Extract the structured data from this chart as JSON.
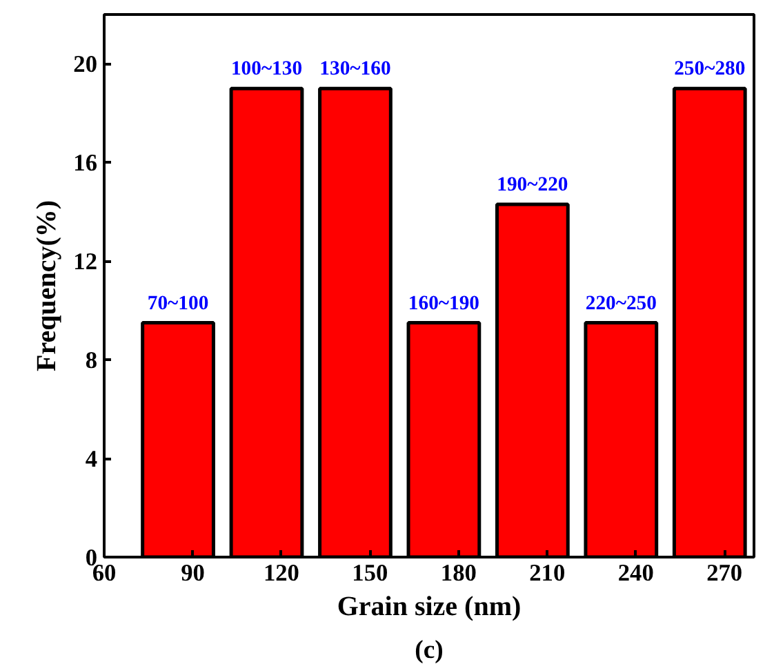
{
  "chart_data": {
    "type": "histogram",
    "xlabel": "Grain size (nm)",
    "ylabel": "Frequency(%)",
    "bins": [
      70,
      100,
      130,
      160,
      190,
      220,
      250,
      280
    ],
    "values": [
      9.5,
      19,
      19,
      9.5,
      14.3,
      9.5,
      19
    ],
    "color": "#ff0000",
    "xlim": [
      60,
      280
    ],
    "xticks": [
      60,
      90,
      120,
      150,
      180,
      210,
      240,
      270
    ],
    "ylim": [
      0,
      22
    ],
    "yticks": [
      0,
      4,
      8,
      12,
      16,
      20
    ],
    "annotations": [
      {
        "text": "70~100",
        "x": 85,
        "y": 9.5
      },
      {
        "text": "100~130",
        "x": 115,
        "y": 19
      },
      {
        "text": "130~160",
        "x": 145,
        "y": 19
      },
      {
        "text": "160~190",
        "x": 175,
        "y": 9.5
      },
      {
        "text": "190~220",
        "x": 205,
        "y": 14.3
      },
      {
        "text": "220~250",
        "x": 235,
        "y": 9.5
      },
      {
        "text": "250~280",
        "x": 265,
        "y": 19
      },
      "(c)"
    ]
  }
}
